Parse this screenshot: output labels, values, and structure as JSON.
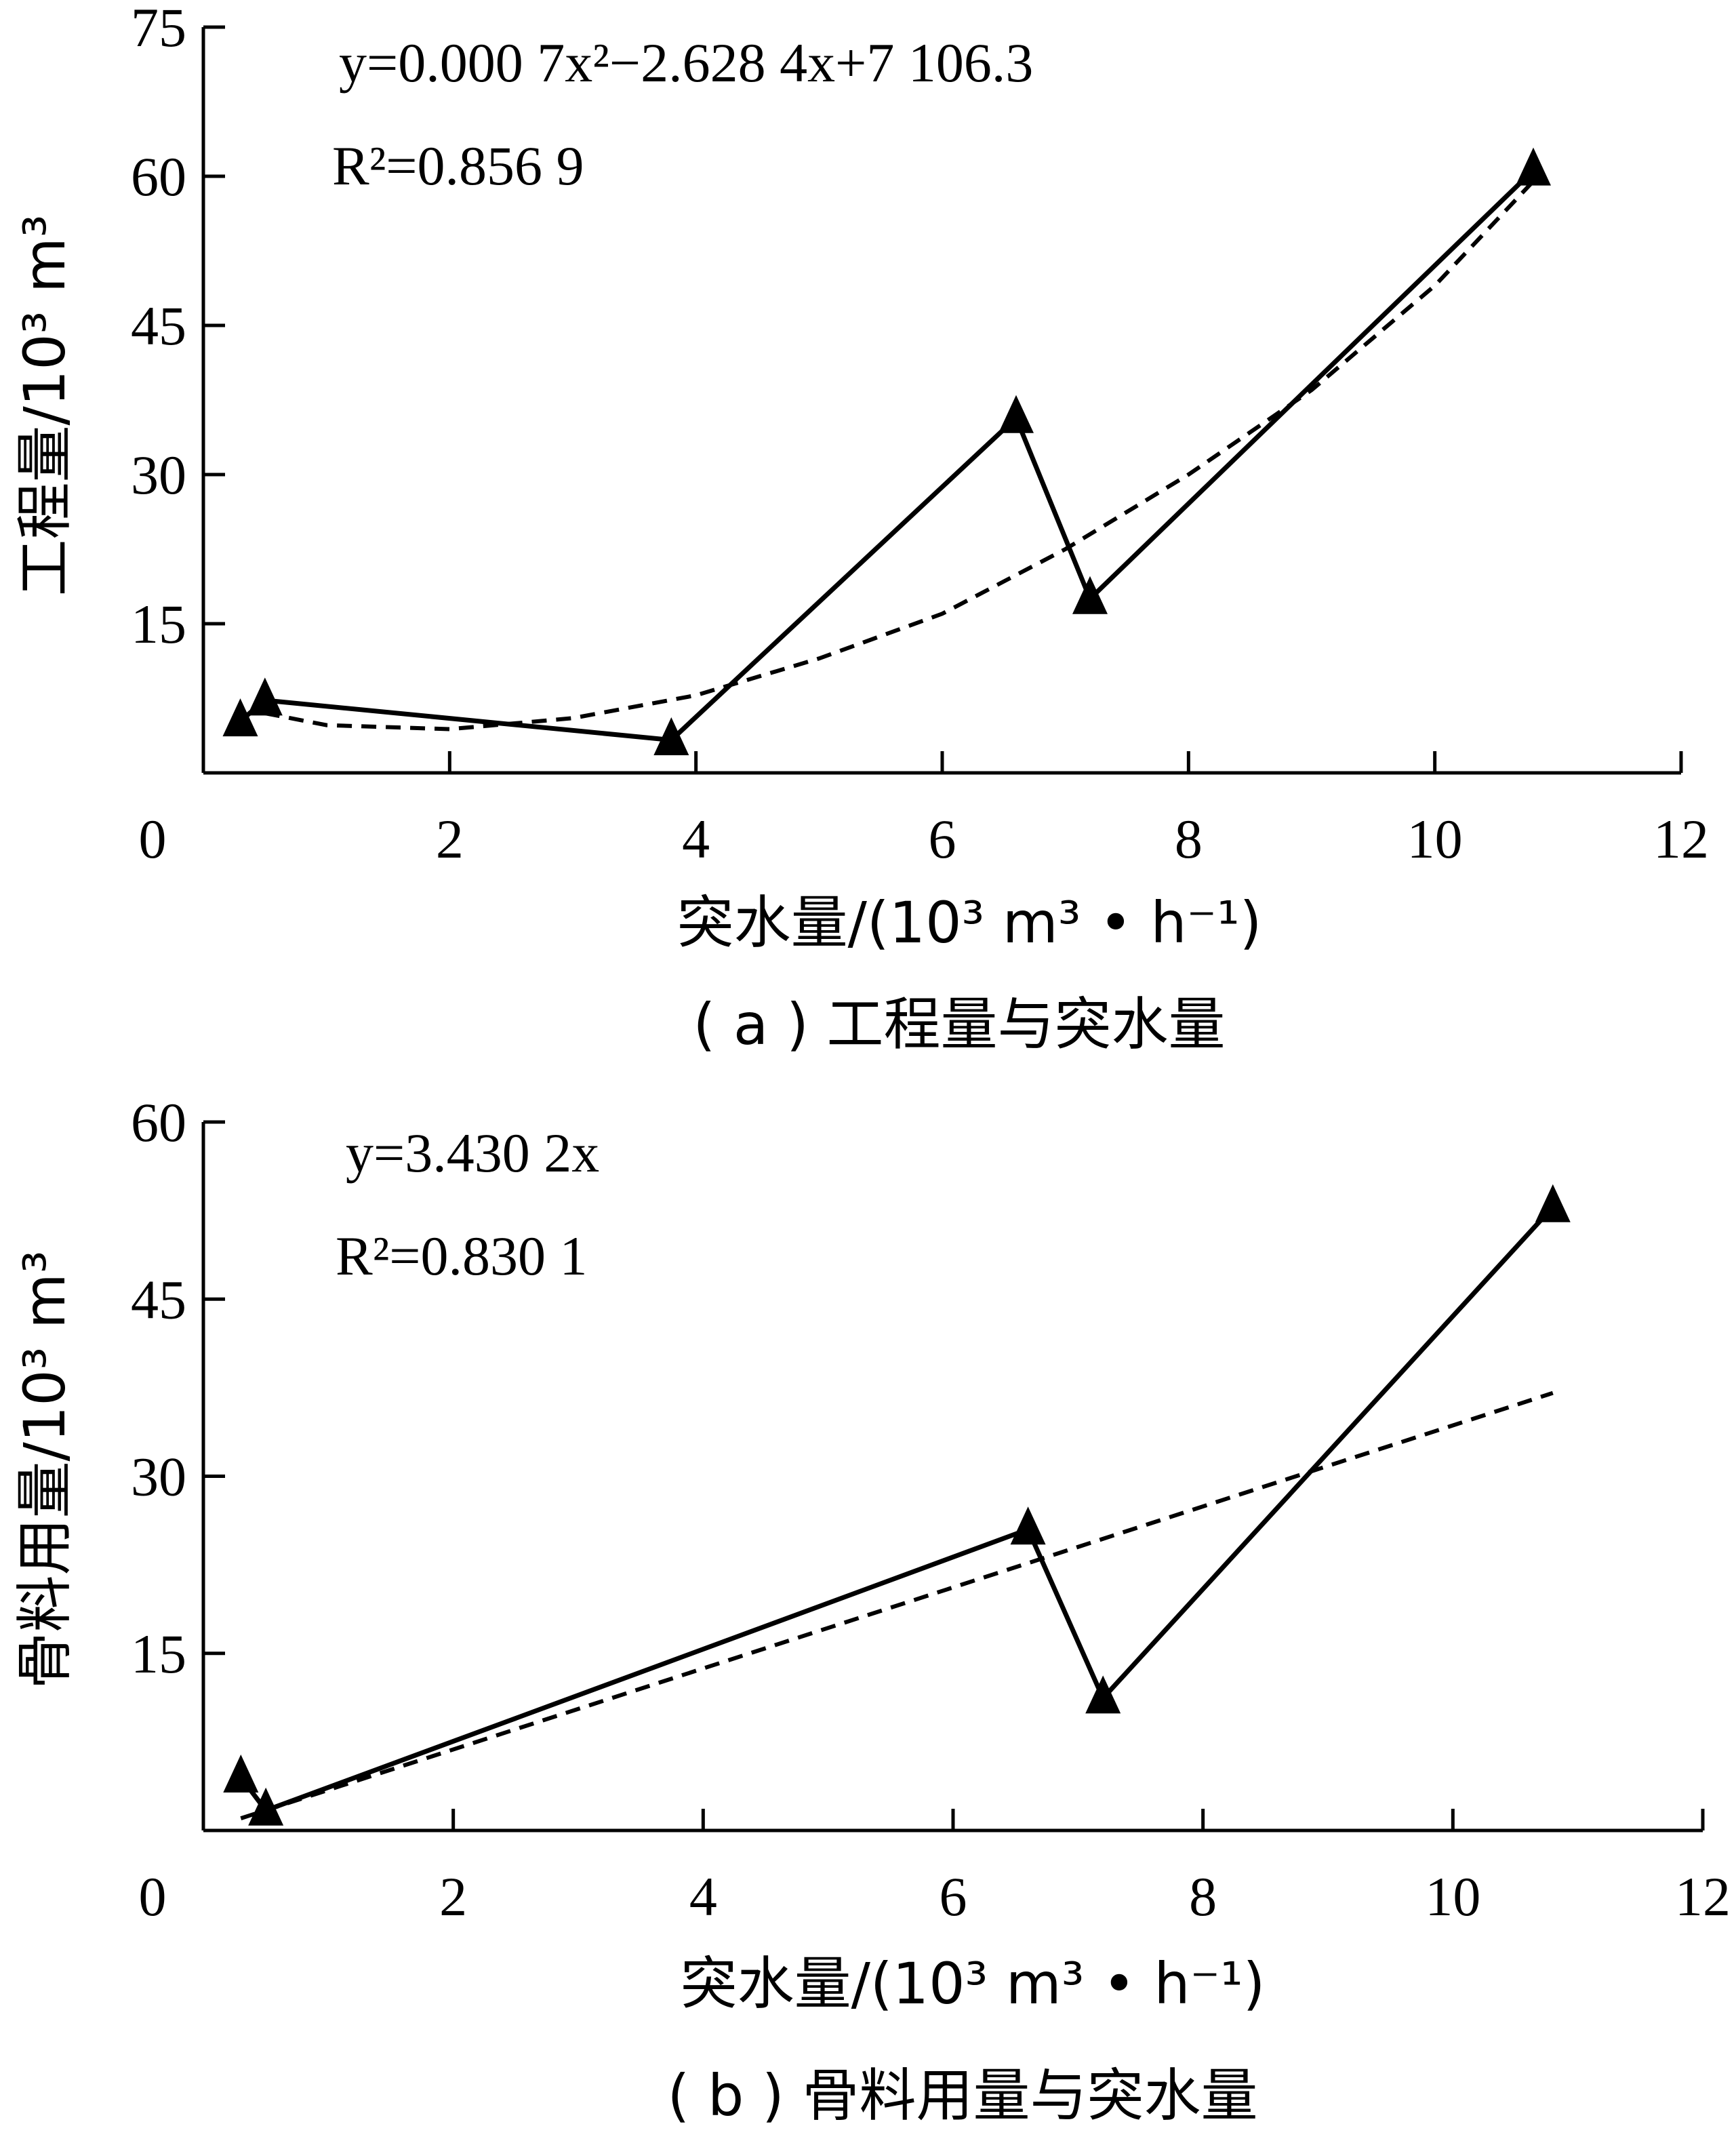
{
  "chart_data": [
    {
      "type": "line",
      "panel_caption": "( a ) 工程量与突水量",
      "xlabel": "突水量/(10³ m³ • h⁻¹)",
      "ylabel": "工程量/10³ m³",
      "xlim": [
        0,
        12
      ],
      "ylim": [
        0,
        75
      ],
      "x_ticks": [
        "0",
        "2",
        "4",
        "6",
        "8",
        "10",
        "12"
      ],
      "y_ticks": [
        "15",
        "30",
        "45",
        "60",
        "75"
      ],
      "series": [
        {
          "marker": "triangle",
          "points": [
            {
              "x": 0.3,
              "y": 5.2
            },
            {
              "x": 0.5,
              "y": 7.3
            },
            {
              "x": 3.8,
              "y": 3.3
            },
            {
              "x": 6.6,
              "y": 35.7
            },
            {
              "x": 7.2,
              "y": 17.5
            },
            {
              "x": 10.8,
              "y": 60.6
            }
          ]
        }
      ],
      "trendline": {
        "type": "polynomial",
        "coefficients": [
          0.0007,
          -2.6284,
          7106.3
        ],
        "fit_points": [
          {
            "x": 0.5,
            "y": 6.0
          },
          {
            "x": 1.0,
            "y": 4.8
          },
          {
            "x": 2.0,
            "y": 4.4
          },
          {
            "x": 3.0,
            "y": 5.5
          },
          {
            "x": 4.0,
            "y": 7.8
          },
          {
            "x": 5.0,
            "y": 11.5
          },
          {
            "x": 6.0,
            "y": 16.0
          },
          {
            "x": 7.0,
            "y": 22.5
          },
          {
            "x": 8.0,
            "y": 30.0
          },
          {
            "x": 9.0,
            "y": 38.5
          },
          {
            "x": 10.0,
            "y": 49.0
          },
          {
            "x": 10.8,
            "y": 59.5
          }
        ],
        "equation_text": "y=0.000 7x²−2.628 4x+7 106.3",
        "r2_text": "R²=0.856 9"
      }
    },
    {
      "type": "line",
      "panel_caption": "( b ) 骨料用量与突水量",
      "xlabel": "突水量/(10³ m³ • h⁻¹)",
      "ylabel": "骨料用量/10³ m³",
      "xlim": [
        0,
        12
      ],
      "ylim": [
        0,
        60
      ],
      "x_ticks": [
        "0",
        "2",
        "4",
        "6",
        "8",
        "10",
        "12"
      ],
      "y_ticks": [
        "15",
        "30",
        "45",
        "60"
      ],
      "series": [
        {
          "marker": "triangle",
          "points": [
            {
              "x": 0.3,
              "y": 4.5
            },
            {
              "x": 0.5,
              "y": 1.7
            },
            {
              "x": 6.6,
              "y": 25.5
            },
            {
              "x": 7.2,
              "y": 11.2
            },
            {
              "x": 10.8,
              "y": 52.8
            }
          ]
        }
      ],
      "trendline": {
        "type": "linear",
        "slope": 3.4302,
        "fit_points": [
          {
            "x": 0.3,
            "y": 1.03
          },
          {
            "x": 10.8,
            "y": 37.05
          }
        ],
        "equation_text": "y=3.430 2x",
        "r2_text": "R²=0.830 1"
      }
    }
  ]
}
